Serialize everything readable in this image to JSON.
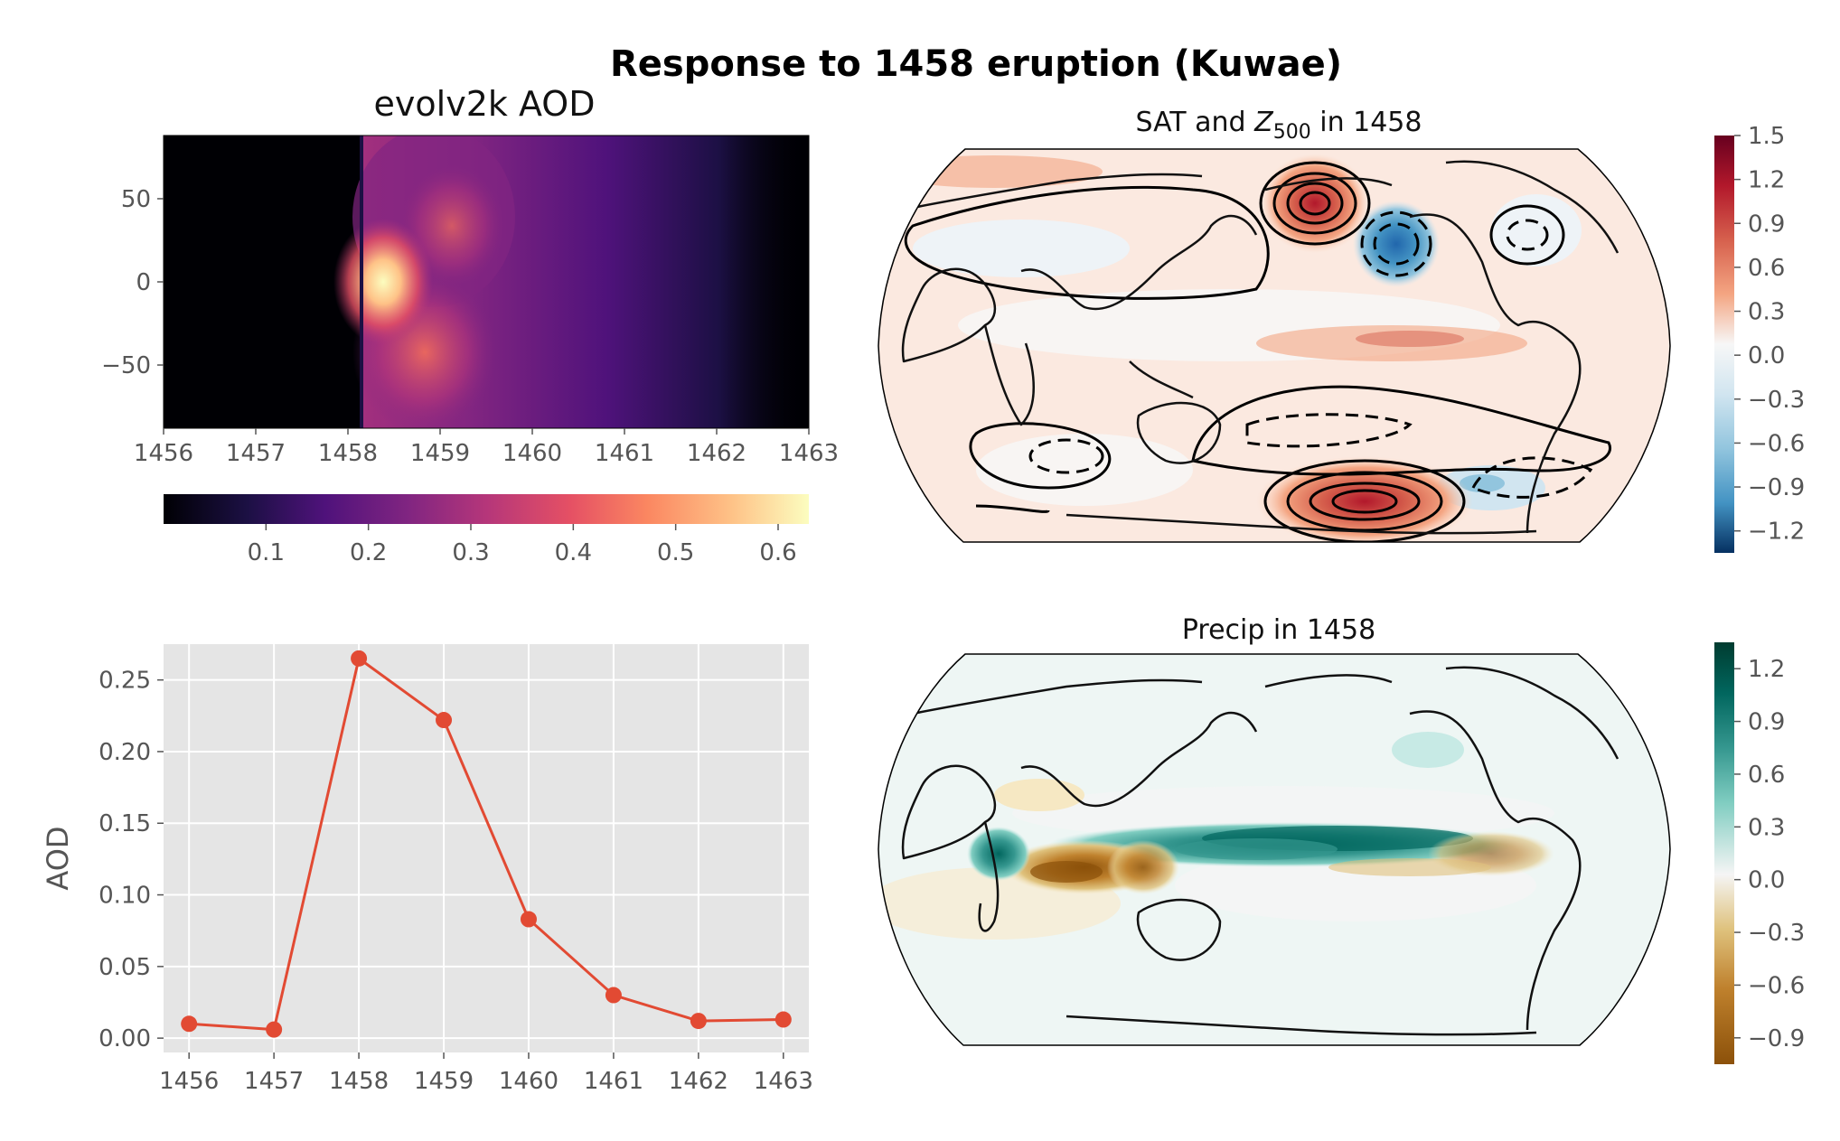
{
  "figure": {
    "suptitle": "Response to 1458 eruption (Kuwae)"
  },
  "chart_data": [
    {
      "type": "heatmap",
      "title": "evolv2k AOD",
      "xlim": [
        1456,
        1463
      ],
      "ylim": [
        -88,
        88
      ],
      "x_ticks": [
        "1456",
        "1457",
        "1458",
        "1459",
        "1460",
        "1461",
        "1462",
        "1463"
      ],
      "y_ticks": [
        "50",
        "0",
        "−50"
      ],
      "y_tick_values": [
        50,
        0,
        -50
      ],
      "colormap": "magma",
      "colorbar": {
        "orientation": "horizontal",
        "range": [
          0,
          0.63
        ],
        "ticks": [
          "0.1",
          "0.2",
          "0.3",
          "0.4",
          "0.5",
          "0.6"
        ],
        "tick_values": [
          0.1,
          0.2,
          0.3,
          0.4,
          0.5,
          0.6
        ]
      },
      "eruption_onset": 1458.2,
      "peak": {
        "year": 1458.4,
        "lat": 0,
        "value": 0.63
      }
    },
    {
      "type": "line",
      "title": "",
      "xlabel": "",
      "ylabel": "AOD",
      "x": [
        1456,
        1457,
        1458,
        1459,
        1460,
        1461,
        1462,
        1463
      ],
      "x_ticks": [
        "1456",
        "1457",
        "1458",
        "1459",
        "1460",
        "1461",
        "1462",
        "1463"
      ],
      "values": [
        0.01,
        0.006,
        0.265,
        0.222,
        0.083,
        0.03,
        0.012,
        0.013
      ],
      "y_ticks": [
        "0.00",
        "0.05",
        "0.10",
        "0.15",
        "0.20",
        "0.25"
      ],
      "y_tick_values": [
        0,
        0.05,
        0.1,
        0.15,
        0.2,
        0.25
      ],
      "ylim": [
        -0.01,
        0.275
      ],
      "xlim": [
        1455.7,
        1463.3
      ],
      "grid": true,
      "style": "ggplot",
      "color": "#E24A33"
    },
    {
      "type": "heatmap",
      "title_prefix": "SAT and ",
      "title_var": "Z",
      "title_sub": "500",
      "title_suffix": " in 1458",
      "projection": "Robinson, Pacific-centered",
      "colormap": "RdBu_r",
      "colorbar": {
        "orientation": "vertical",
        "range": [
          -1.35,
          1.5
        ],
        "ticks": [
          "1.5",
          "1.2",
          "0.9",
          "0.6",
          "0.3",
          "0.0",
          "−0.3",
          "−0.6",
          "−0.9",
          "−1.2"
        ],
        "tick_values": [
          1.5,
          1.2,
          0.9,
          0.6,
          0.3,
          0.0,
          -0.3,
          -0.6,
          -0.9,
          -1.2
        ]
      }
    },
    {
      "type": "heatmap",
      "title": "Precip in 1458",
      "projection": "Robinson, Pacific-centered",
      "colormap": "BrBG",
      "colorbar": {
        "orientation": "vertical",
        "range": [
          -1.05,
          1.35
        ],
        "ticks": [
          "1.2",
          "0.9",
          "0.6",
          "0.3",
          "0.0",
          "−0.3",
          "−0.6",
          "−0.9"
        ],
        "tick_values": [
          1.2,
          0.9,
          0.6,
          0.3,
          0.0,
          -0.3,
          -0.6,
          -0.9
        ]
      }
    }
  ]
}
